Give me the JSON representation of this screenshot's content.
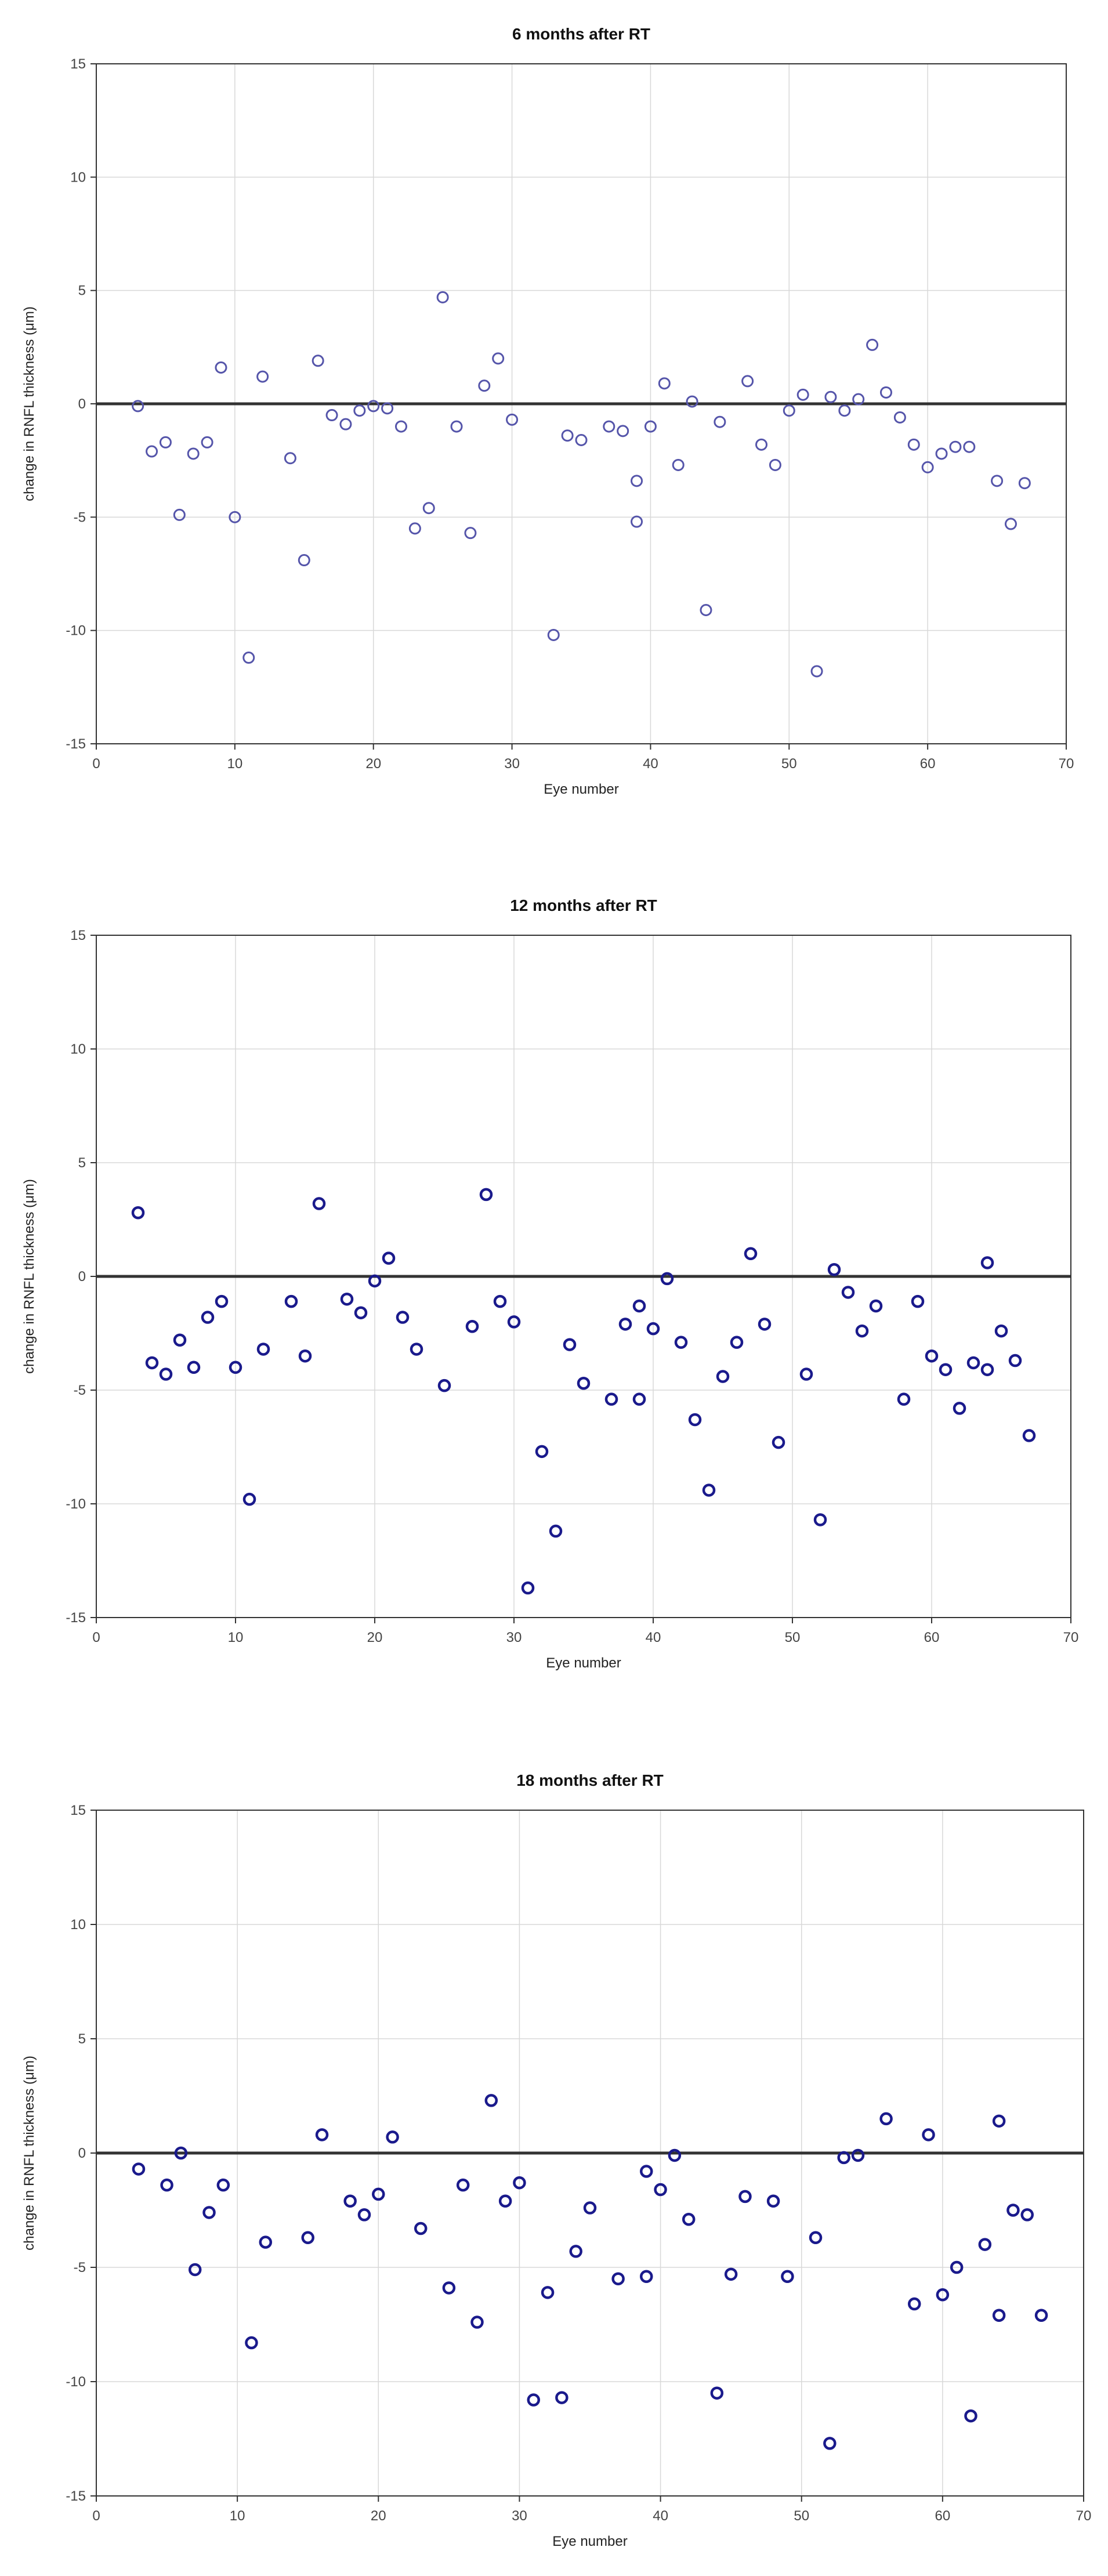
{
  "chart_data": [
    {
      "type": "scatter",
      "title": "6 months after RT",
      "xlabel": "Eye number",
      "ylabel": "change in RNFL thickness (μm)",
      "xlim": [
        0,
        70
      ],
      "ylim": [
        -15,
        15
      ],
      "xticks": [
        0,
        10,
        20,
        30,
        40,
        50,
        60,
        70
      ],
      "yticks": [
        15,
        10,
        5,
        0,
        -5,
        -10,
        -15
      ],
      "grid": true,
      "reference_line": 0,
      "marker_color": "#5555aa",
      "points": [
        [
          3,
          -0.1
        ],
        [
          4,
          -2.1
        ],
        [
          5,
          -1.7
        ],
        [
          6,
          -4.9
        ],
        [
          7,
          -2.2
        ],
        [
          8,
          -1.7
        ],
        [
          9,
          1.6
        ],
        [
          10,
          -5.0
        ],
        [
          11,
          -11.2
        ],
        [
          12,
          1.2
        ],
        [
          14,
          -2.4
        ],
        [
          15,
          -6.9
        ],
        [
          16,
          1.9
        ],
        [
          17,
          -0.5
        ],
        [
          18,
          -0.9
        ],
        [
          19,
          -0.3
        ],
        [
          20,
          -0.1
        ],
        [
          21,
          -0.2
        ],
        [
          22,
          -1.0
        ],
        [
          23,
          -5.5
        ],
        [
          24,
          -4.6
        ],
        [
          25,
          4.7
        ],
        [
          26,
          -1.0
        ],
        [
          27,
          -5.7
        ],
        [
          28,
          0.8
        ],
        [
          29,
          2.0
        ],
        [
          30,
          -0.7
        ],
        [
          33,
          -10.2
        ],
        [
          34,
          -1.4
        ],
        [
          35,
          -1.6
        ],
        [
          37,
          -1.0
        ],
        [
          38,
          -1.2
        ],
        [
          39,
          -3.4
        ],
        [
          39,
          -5.2
        ],
        [
          40,
          -1.0
        ],
        [
          41,
          0.9
        ],
        [
          42,
          -2.7
        ],
        [
          43,
          0.1
        ],
        [
          44,
          -9.1
        ],
        [
          45,
          -0.8
        ],
        [
          47,
          1.0
        ],
        [
          48,
          -1.8
        ],
        [
          49,
          -2.7
        ],
        [
          50,
          -0.3
        ],
        [
          51,
          0.4
        ],
        [
          52,
          -11.8
        ],
        [
          53,
          0.3
        ],
        [
          54,
          -0.3
        ],
        [
          55,
          0.2
        ],
        [
          56,
          2.6
        ],
        [
          57,
          0.5
        ],
        [
          58,
          -0.6
        ],
        [
          59,
          -1.8
        ],
        [
          60,
          -2.8
        ],
        [
          61,
          -2.2
        ],
        [
          62,
          -1.9
        ],
        [
          63,
          -1.9
        ],
        [
          65,
          -3.4
        ],
        [
          66,
          -5.3
        ],
        [
          67,
          -3.5
        ]
      ]
    },
    {
      "type": "scatter",
      "title": "12 months after RT",
      "xlabel": "Eye number",
      "ylabel": "change in RNFL thickness (μm)",
      "xlim": [
        0,
        70
      ],
      "ylim": [
        -15,
        15
      ],
      "xticks": [
        0,
        10,
        20,
        30,
        40,
        50,
        60,
        70
      ],
      "yticks": [
        15,
        10,
        5,
        0,
        -5,
        -10,
        -15
      ],
      "grid": true,
      "reference_line": 0,
      "marker_color": "#1a1a8c",
      "points": [
        [
          3,
          2.8
        ],
        [
          4,
          -3.8
        ],
        [
          5,
          -4.3
        ],
        [
          6,
          -2.8
        ],
        [
          7,
          -4.0
        ],
        [
          8,
          -1.8
        ],
        [
          9,
          -1.1
        ],
        [
          10,
          -4.0
        ],
        [
          11,
          -9.8
        ],
        [
          12,
          -3.2
        ],
        [
          14,
          -1.1
        ],
        [
          15,
          -3.5
        ],
        [
          16,
          3.2
        ],
        [
          18,
          -1.0
        ],
        [
          19,
          -1.6
        ],
        [
          20,
          -0.2
        ],
        [
          21,
          0.8
        ],
        [
          22,
          -1.8
        ],
        [
          23,
          -3.2
        ],
        [
          25,
          -4.8
        ],
        [
          27,
          -2.2
        ],
        [
          28,
          3.6
        ],
        [
          29,
          -1.1
        ],
        [
          30,
          -2.0
        ],
        [
          31,
          -13.7
        ],
        [
          32,
          -7.7
        ],
        [
          33,
          -11.2
        ],
        [
          34,
          -3.0
        ],
        [
          35,
          -4.7
        ],
        [
          37,
          -5.4
        ],
        [
          38,
          -2.1
        ],
        [
          39,
          -1.3
        ],
        [
          39,
          -5.4
        ],
        [
          40,
          -2.3
        ],
        [
          41,
          -0.1
        ],
        [
          42,
          -2.9
        ],
        [
          43,
          -6.3
        ],
        [
          44,
          -9.4
        ],
        [
          45,
          -4.4
        ],
        [
          46,
          -2.9
        ],
        [
          47,
          1.0
        ],
        [
          48,
          -2.1
        ],
        [
          49,
          -7.3
        ],
        [
          51,
          -4.3
        ],
        [
          52,
          -10.7
        ],
        [
          53,
          0.3
        ],
        [
          54,
          -0.7
        ],
        [
          55,
          -2.4
        ],
        [
          56,
          -1.3
        ],
        [
          58,
          -5.4
        ],
        [
          59,
          -1.1
        ],
        [
          60,
          -3.5
        ],
        [
          61,
          -4.1
        ],
        [
          62,
          -5.8
        ],
        [
          63,
          -3.8
        ],
        [
          64,
          -4.1
        ],
        [
          64,
          0.6
        ],
        [
          65,
          -2.4
        ],
        [
          66,
          -3.7
        ],
        [
          67,
          -7.0
        ]
      ]
    },
    {
      "type": "scatter",
      "title": "18 months after RT",
      "xlabel": "Eye number",
      "ylabel": "change in RNFL thickness (μm)",
      "xlim": [
        0,
        70
      ],
      "ylim": [
        -15,
        15
      ],
      "xticks": [
        0,
        10,
        20,
        30,
        40,
        50,
        60,
        70
      ],
      "yticks": [
        15,
        10,
        5,
        0,
        -5,
        -10,
        -15
      ],
      "grid": true,
      "reference_line": 0,
      "marker_color": "#1a1a8c",
      "points": [
        [
          3,
          -0.7
        ],
        [
          5,
          -1.4
        ],
        [
          6,
          0.0
        ],
        [
          7,
          -5.1
        ],
        [
          8,
          -2.6
        ],
        [
          9,
          -1.4
        ],
        [
          11,
          -8.3
        ],
        [
          12,
          -3.9
        ],
        [
          15,
          -3.7
        ],
        [
          16,
          0.8
        ],
        [
          18,
          -2.1
        ],
        [
          19,
          -2.7
        ],
        [
          20,
          -1.8
        ],
        [
          21,
          0.7
        ],
        [
          23,
          -3.3
        ],
        [
          25,
          -5.9
        ],
        [
          26,
          -1.4
        ],
        [
          27,
          -7.4
        ],
        [
          28,
          2.3
        ],
        [
          29,
          -2.1
        ],
        [
          30,
          -1.3
        ],
        [
          31,
          -10.8
        ],
        [
          32,
          -6.1
        ],
        [
          33,
          -10.7
        ],
        [
          34,
          -4.3
        ],
        [
          35,
          -2.4
        ],
        [
          37,
          -5.5
        ],
        [
          39,
          -0.8
        ],
        [
          39,
          -5.4
        ],
        [
          40,
          -1.6
        ],
        [
          41,
          -0.1
        ],
        [
          42,
          -2.9
        ],
        [
          44,
          -10.5
        ],
        [
          45,
          -5.3
        ],
        [
          46,
          -1.9
        ],
        [
          48,
          -2.1
        ],
        [
          49,
          -5.4
        ],
        [
          51,
          -3.7
        ],
        [
          52,
          -12.7
        ],
        [
          53,
          -0.2
        ],
        [
          54,
          -0.1
        ],
        [
          56,
          1.5
        ],
        [
          58,
          -6.6
        ],
        [
          59,
          0.8
        ],
        [
          60,
          -6.2
        ],
        [
          61,
          -5.0
        ],
        [
          62,
          -11.5
        ],
        [
          63,
          -4.0
        ],
        [
          64,
          -7.1
        ],
        [
          64,
          1.4
        ],
        [
          65,
          -2.5
        ],
        [
          66,
          -2.7
        ],
        [
          67,
          -7.1
        ]
      ]
    }
  ]
}
